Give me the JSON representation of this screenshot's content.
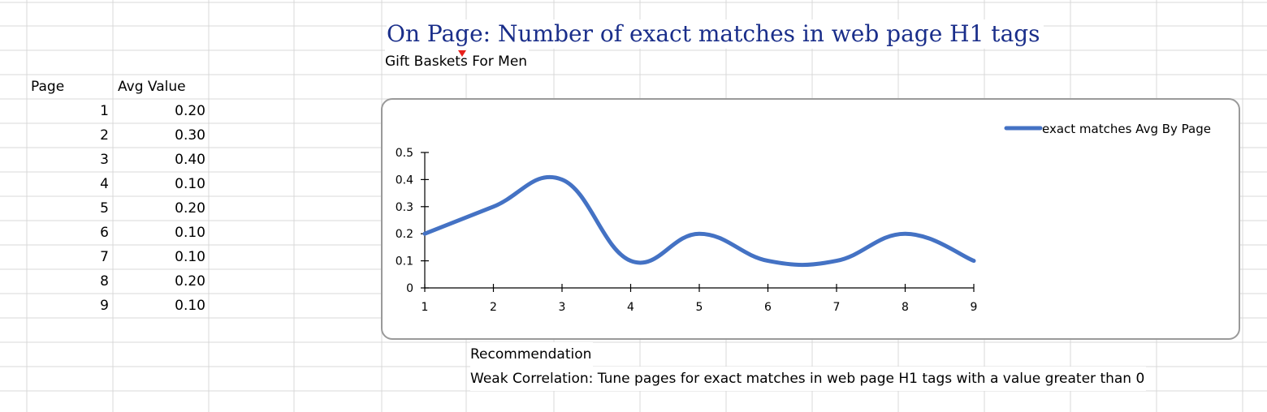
{
  "sheet": {
    "title": "On Page: Number of exact matches in web page H1 tags",
    "subtitle": "Gift Baskets For Men",
    "table": {
      "headers": [
        "Page",
        "Avg Value"
      ],
      "rows": [
        {
          "page": "1",
          "value": "0.20"
        },
        {
          "page": "2",
          "value": "0.30"
        },
        {
          "page": "3",
          "value": "0.40"
        },
        {
          "page": "4",
          "value": "0.10"
        },
        {
          "page": "5",
          "value": "0.20"
        },
        {
          "page": "6",
          "value": "0.10"
        },
        {
          "page": "7",
          "value": "0.10"
        },
        {
          "page": "8",
          "value": "0.20"
        },
        {
          "page": "9",
          "value": "0.10"
        }
      ]
    },
    "recommendation_label": "Recommendation",
    "recommendation_text": "Weak Correlation: Tune pages for exact matches in web page H1 tags with a value greater than 0",
    "comment_indicator_color": "#e8201b",
    "title_color": "#1a2e8a"
  },
  "chart_data": {
    "type": "line",
    "smooth": true,
    "categories": [
      "1",
      "2",
      "3",
      "4",
      "5",
      "6",
      "7",
      "8",
      "9"
    ],
    "series": [
      {
        "name": "exact matches Avg By Page",
        "values": [
          0.2,
          0.3,
          0.4,
          0.1,
          0.2,
          0.1,
          0.1,
          0.2,
          0.1
        ],
        "color": "#4472c4"
      }
    ],
    "y_ticks": [
      "0",
      "0.1",
      "0.2",
      "0.3",
      "0.4",
      "0.5"
    ],
    "ylim": [
      0,
      0.5
    ],
    "grid": false,
    "legend_position": "top-right"
  }
}
